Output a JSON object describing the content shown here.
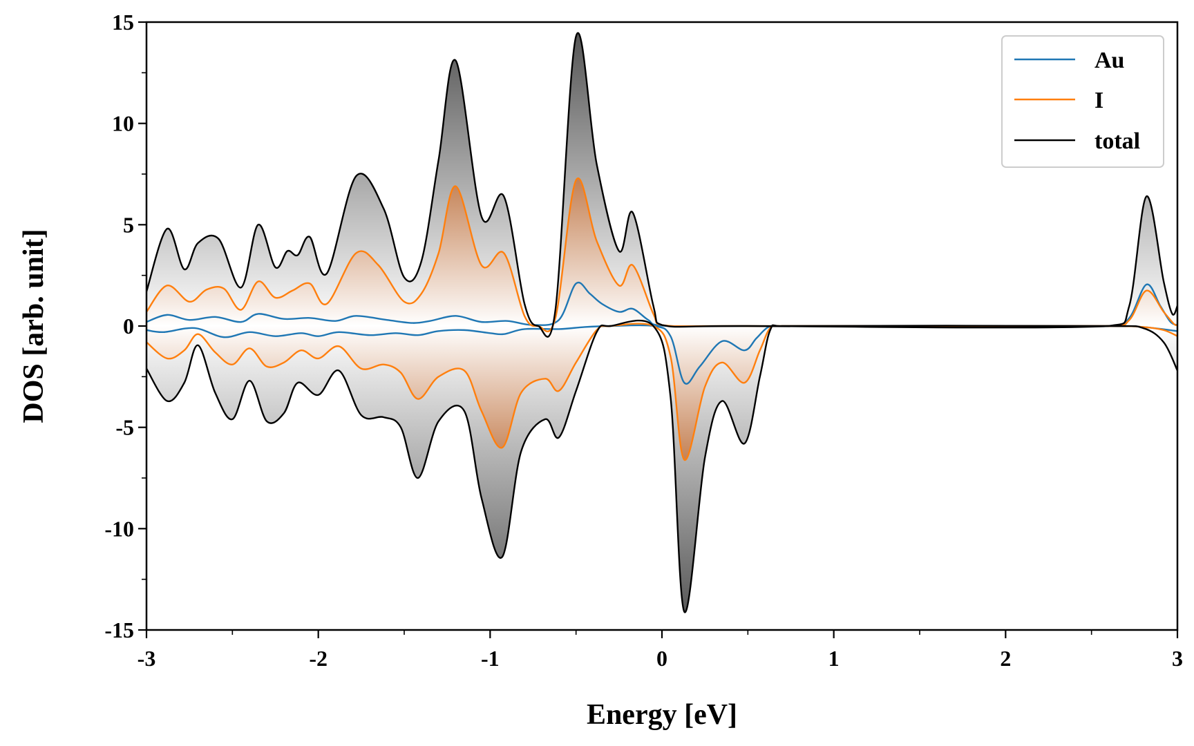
{
  "chart_data": {
    "type": "line",
    "xlabel": "Energy [eV]",
    "ylabel": "DOS [arb. unit]",
    "xlim": [
      -3,
      3
    ],
    "ylim": [
      -15,
      15
    ],
    "xticks": [
      -3,
      -2,
      -1,
      0,
      1,
      2,
      3
    ],
    "yticks": [
      -15,
      -10,
      -5,
      0,
      5,
      10,
      15
    ],
    "xtick_labels": [
      "-3",
      "-2",
      "-1",
      "0",
      "1",
      "2",
      "3"
    ],
    "ytick_labels": [
      "-15",
      "-10",
      "-5",
      "0",
      "5",
      "10",
      "15"
    ],
    "grid": false,
    "legend_position": "top-right",
    "fill_under_curves": true,
    "series": [
      {
        "name": "Au",
        "color": "#1f77b4",
        "up": [
          [
            -3,
            0.2
          ],
          [
            -2.88,
            0.55
          ],
          [
            -2.75,
            0.3
          ],
          [
            -2.6,
            0.45
          ],
          [
            -2.45,
            0.2
          ],
          [
            -2.35,
            0.6
          ],
          [
            -2.2,
            0.35
          ],
          [
            -2.05,
            0.4
          ],
          [
            -1.9,
            0.25
          ],
          [
            -1.78,
            0.5
          ],
          [
            -1.6,
            0.3
          ],
          [
            -1.45,
            0.15
          ],
          [
            -1.35,
            0.25
          ],
          [
            -1.2,
            0.5
          ],
          [
            -1.05,
            0.2
          ],
          [
            -0.9,
            0.25
          ],
          [
            -0.75,
            0.05
          ],
          [
            -0.6,
            0.3
          ],
          [
            -0.5,
            2.1
          ],
          [
            -0.42,
            1.6
          ],
          [
            -0.35,
            1.1
          ],
          [
            -0.25,
            0.7
          ],
          [
            -0.17,
            0.85
          ],
          [
            -0.08,
            0.3
          ],
          [
            0,
            0.02
          ],
          [
            0.5,
            0
          ],
          [
            2.6,
            0
          ],
          [
            2.72,
            0.4
          ],
          [
            2.82,
            2.05
          ],
          [
            2.9,
            1.0
          ],
          [
            2.96,
            0.2
          ],
          [
            3,
            0.05
          ]
        ],
        "down": [
          [
            -3,
            -0.2
          ],
          [
            -2.9,
            -0.3
          ],
          [
            -2.72,
            -0.1
          ],
          [
            -2.55,
            -0.55
          ],
          [
            -2.4,
            -0.3
          ],
          [
            -2.25,
            -0.5
          ],
          [
            -2.1,
            -0.35
          ],
          [
            -2.0,
            -0.5
          ],
          [
            -1.88,
            -0.3
          ],
          [
            -1.7,
            -0.45
          ],
          [
            -1.55,
            -0.35
          ],
          [
            -1.42,
            -0.45
          ],
          [
            -1.3,
            -0.25
          ],
          [
            -1.15,
            -0.2
          ],
          [
            -1.0,
            -0.35
          ],
          [
            -0.92,
            -0.4
          ],
          [
            -0.8,
            -0.15
          ],
          [
            -0.6,
            -0.15
          ],
          [
            -0.45,
            -0.05
          ],
          [
            -0.3,
            0
          ],
          [
            -0.05,
            0
          ],
          [
            0.05,
            -0.5
          ],
          [
            0.13,
            -2.8
          ],
          [
            0.22,
            -2.0
          ],
          [
            0.35,
            -0.75
          ],
          [
            0.48,
            -1.2
          ],
          [
            0.55,
            -0.6
          ],
          [
            0.62,
            -0.05
          ],
          [
            0.7,
            0
          ],
          [
            2.6,
            0
          ],
          [
            2.8,
            -0.05
          ],
          [
            3,
            -0.25
          ]
        ]
      },
      {
        "name": "I",
        "color": "#ff7f0e",
        "up": [
          [
            -3,
            0.7
          ],
          [
            -2.88,
            2.0
          ],
          [
            -2.75,
            1.2
          ],
          [
            -2.65,
            1.8
          ],
          [
            -2.55,
            1.85
          ],
          [
            -2.45,
            0.8
          ],
          [
            -2.35,
            2.2
          ],
          [
            -2.25,
            1.4
          ],
          [
            -2.15,
            1.75
          ],
          [
            -2.05,
            2.1
          ],
          [
            -1.95,
            1.1
          ],
          [
            -1.78,
            3.6
          ],
          [
            -1.65,
            3.0
          ],
          [
            -1.5,
            1.2
          ],
          [
            -1.4,
            1.6
          ],
          [
            -1.3,
            3.6
          ],
          [
            -1.2,
            6.9
          ],
          [
            -1.05,
            3.0
          ],
          [
            -0.92,
            3.6
          ],
          [
            -0.8,
            0.5
          ],
          [
            -0.72,
            0.0
          ],
          [
            -0.62,
            0.4
          ],
          [
            -0.5,
            7.2
          ],
          [
            -0.38,
            4.2
          ],
          [
            -0.25,
            2.0
          ],
          [
            -0.17,
            3.0
          ],
          [
            -0.05,
            0.6
          ],
          [
            0,
            0.05
          ],
          [
            0.5,
            0
          ],
          [
            2.6,
            0
          ],
          [
            2.72,
            0.3
          ],
          [
            2.82,
            1.75
          ],
          [
            2.92,
            0.7
          ],
          [
            2.98,
            0.1
          ],
          [
            3,
            0.05
          ]
        ],
        "down": [
          [
            -3,
            -0.8
          ],
          [
            -2.88,
            -1.6
          ],
          [
            -2.78,
            -1.2
          ],
          [
            -2.7,
            -0.4
          ],
          [
            -2.6,
            -1.3
          ],
          [
            -2.5,
            -1.9
          ],
          [
            -2.4,
            -1.1
          ],
          [
            -2.3,
            -2.0
          ],
          [
            -2.2,
            -1.8
          ],
          [
            -2.1,
            -1.2
          ],
          [
            -2.0,
            -1.6
          ],
          [
            -1.88,
            -1.0
          ],
          [
            -1.75,
            -2.1
          ],
          [
            -1.62,
            -1.9
          ],
          [
            -1.52,
            -2.3
          ],
          [
            -1.42,
            -3.6
          ],
          [
            -1.3,
            -2.5
          ],
          [
            -1.15,
            -2.2
          ],
          [
            -1.05,
            -4.2
          ],
          [
            -0.93,
            -6.0
          ],
          [
            -0.82,
            -3.3
          ],
          [
            -0.68,
            -2.6
          ],
          [
            -0.6,
            -3.2
          ],
          [
            -0.5,
            -1.8
          ],
          [
            -0.38,
            -0.2
          ],
          [
            -0.3,
            0
          ],
          [
            -0.05,
            0
          ],
          [
            0.05,
            -1.5
          ],
          [
            0.13,
            -6.6
          ],
          [
            0.25,
            -3.0
          ],
          [
            0.35,
            -1.8
          ],
          [
            0.48,
            -2.8
          ],
          [
            0.57,
            -1.2
          ],
          [
            0.63,
            -0.1
          ],
          [
            0.7,
            0
          ],
          [
            2.6,
            0
          ],
          [
            2.8,
            -0.05
          ],
          [
            2.92,
            -0.2
          ],
          [
            3,
            -0.5
          ]
        ]
      },
      {
        "name": "total",
        "color": "#000000",
        "up": [
          [
            -3,
            1.7
          ],
          [
            -2.88,
            4.8
          ],
          [
            -2.78,
            2.8
          ],
          [
            -2.7,
            4.1
          ],
          [
            -2.58,
            4.3
          ],
          [
            -2.45,
            1.9
          ],
          [
            -2.35,
            5.0
          ],
          [
            -2.25,
            2.9
          ],
          [
            -2.18,
            3.7
          ],
          [
            -2.12,
            3.5
          ],
          [
            -2.05,
            4.4
          ],
          [
            -1.95,
            2.6
          ],
          [
            -1.78,
            7.4
          ],
          [
            -1.62,
            5.8
          ],
          [
            -1.5,
            2.4
          ],
          [
            -1.4,
            3.2
          ],
          [
            -1.3,
            8.2
          ],
          [
            -1.2,
            13.1
          ],
          [
            -1.05,
            5.4
          ],
          [
            -0.92,
            6.4
          ],
          [
            -0.8,
            1.1
          ],
          [
            -0.72,
            0.0
          ],
          [
            -0.62,
            0.8
          ],
          [
            -0.5,
            14.3
          ],
          [
            -0.38,
            8.0
          ],
          [
            -0.25,
            3.7
          ],
          [
            -0.17,
            5.6
          ],
          [
            -0.05,
            1.0
          ],
          [
            0,
            0.05
          ],
          [
            0.5,
            0
          ],
          [
            2.6,
            0
          ],
          [
            2.72,
            1.0
          ],
          [
            2.82,
            6.4
          ],
          [
            2.92,
            2.2
          ],
          [
            2.97,
            0.6
          ],
          [
            3,
            1.0
          ]
        ],
        "down": [
          [
            -3,
            -2.1
          ],
          [
            -2.88,
            -3.7
          ],
          [
            -2.78,
            -2.8
          ],
          [
            -2.7,
            -0.95
          ],
          [
            -2.6,
            -3.3
          ],
          [
            -2.5,
            -4.6
          ],
          [
            -2.4,
            -2.7
          ],
          [
            -2.3,
            -4.7
          ],
          [
            -2.2,
            -4.3
          ],
          [
            -2.12,
            -2.8
          ],
          [
            -2.0,
            -3.4
          ],
          [
            -1.88,
            -2.2
          ],
          [
            -1.75,
            -4.4
          ],
          [
            -1.62,
            -4.5
          ],
          [
            -1.52,
            -5.0
          ],
          [
            -1.42,
            -7.5
          ],
          [
            -1.3,
            -4.7
          ],
          [
            -1.15,
            -4.2
          ],
          [
            -1.05,
            -8.5
          ],
          [
            -0.93,
            -11.4
          ],
          [
            -0.82,
            -6.2
          ],
          [
            -0.68,
            -4.6
          ],
          [
            -0.6,
            -5.5
          ],
          [
            -0.5,
            -3.2
          ],
          [
            -0.38,
            -0.3
          ],
          [
            -0.3,
            0
          ],
          [
            -0.05,
            0
          ],
          [
            0.05,
            -3.5
          ],
          [
            0.13,
            -14.1
          ],
          [
            0.25,
            -6.5
          ],
          [
            0.35,
            -3.7
          ],
          [
            0.48,
            -5.8
          ],
          [
            0.57,
            -2.5
          ],
          [
            0.63,
            -0.2
          ],
          [
            0.7,
            0
          ],
          [
            2.6,
            0
          ],
          [
            2.8,
            -0.1
          ],
          [
            2.92,
            -0.8
          ],
          [
            3,
            -2.2
          ]
        ]
      }
    ]
  }
}
